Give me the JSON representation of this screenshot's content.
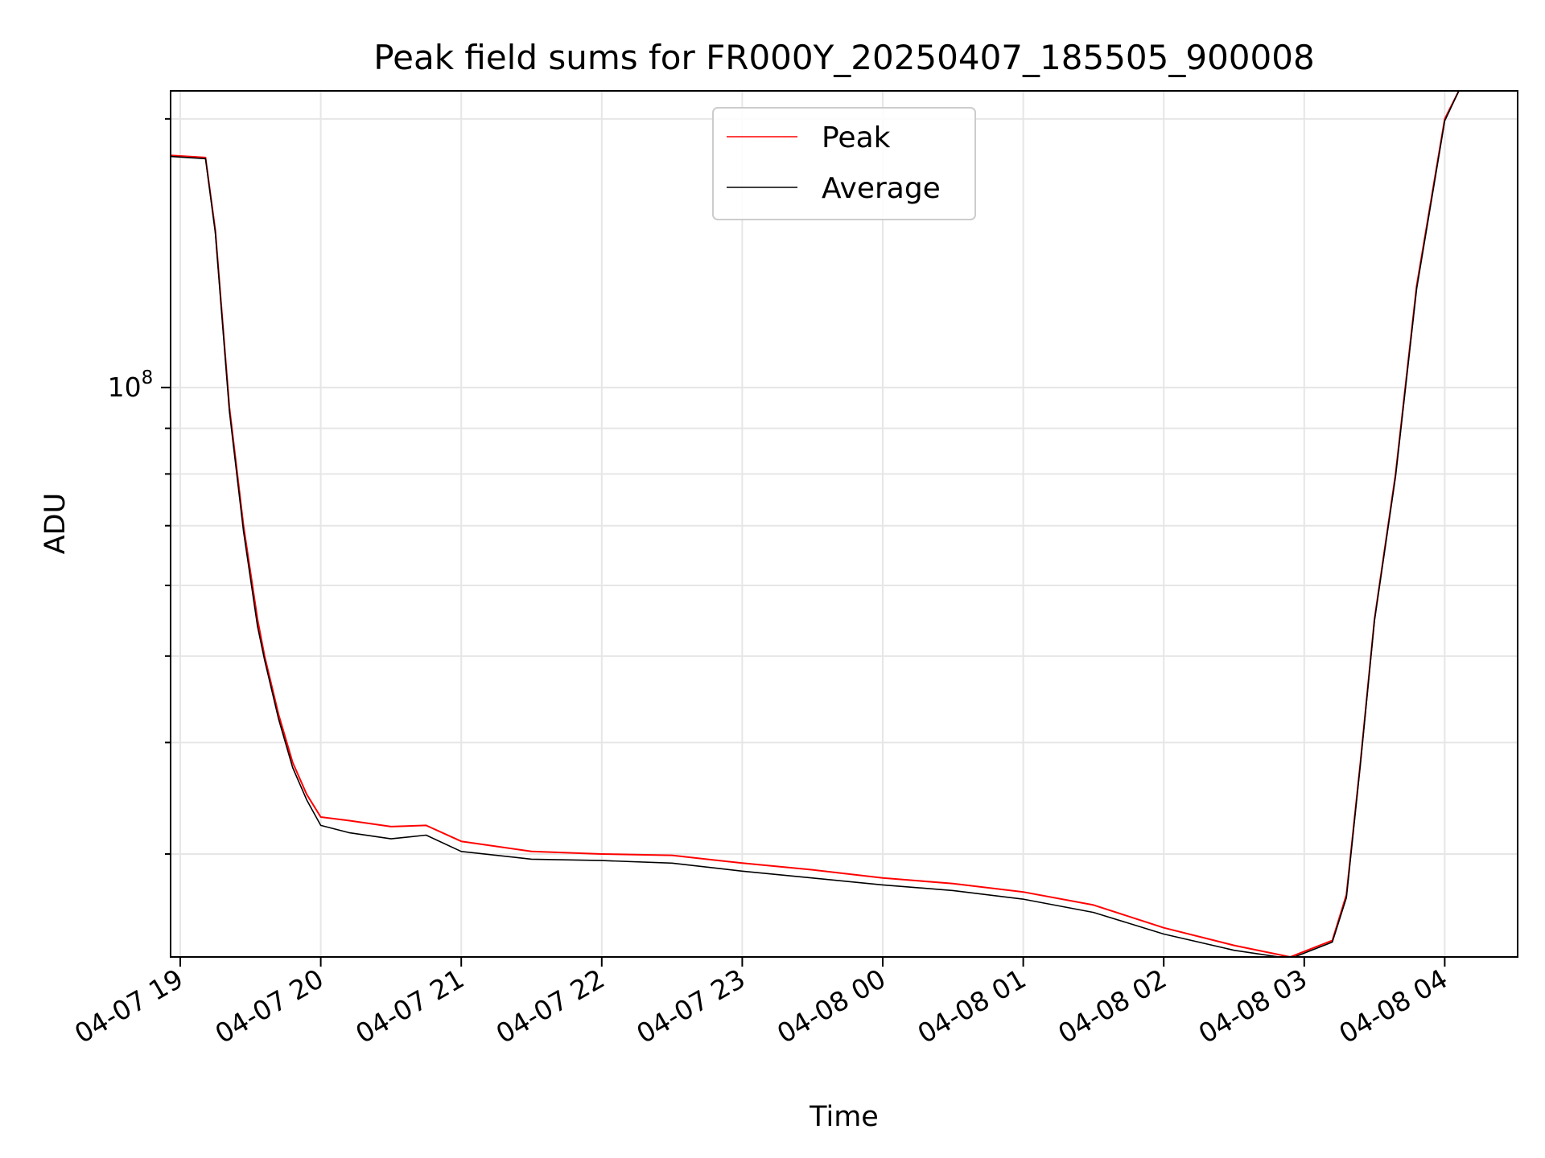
{
  "chart_data": {
    "type": "line",
    "title": "Peak field sums for FR000Y_20250407_185505_900008",
    "xlabel": "Time",
    "ylabel": "ADU",
    "x_ticks": [
      "04-07 19",
      "04-07 20",
      "04-07 21",
      "04-07 22",
      "04-07 23",
      "04-08 00",
      "04-08 01",
      "04-08 02",
      "04-08 03",
      "04-08 04"
    ],
    "y_tick_major": {
      "base": "10",
      "exponent": "8",
      "value": 100000000
    },
    "ylim": [
      23000000,
      215000000
    ],
    "log_y": true,
    "grid": true,
    "legend_position": "top-center",
    "x_hours": [
      -0.07,
      0.18,
      0.25,
      0.35,
      0.45,
      0.55,
      0.6,
      0.7,
      0.8,
      0.9,
      1.0,
      1.2,
      1.5,
      1.75,
      2.0,
      2.5,
      3.0,
      3.5,
      4.0,
      4.5,
      5.0,
      5.5,
      6.0,
      6.5,
      7.0,
      7.5,
      7.9,
      8.2,
      8.3,
      8.4,
      8.5,
      8.65,
      8.8,
      9.0,
      9.1,
      9.2
    ],
    "series": [
      {
        "name": "Peak",
        "color": "#ff0000",
        "values": [
          182000000,
          181000000,
          150000000,
          95000000,
          70000000,
          55000000,
          50000000,
          43000000,
          38000000,
          35000000,
          33000000,
          32700000,
          32200000,
          32300000,
          31000000,
          30200000,
          30000000,
          29900000,
          29300000,
          28800000,
          28200000,
          27800000,
          27200000,
          26300000,
          24800000,
          23700000,
          23000000,
          24000000,
          27000000,
          38000000,
          55000000,
          80000000,
          130000000,
          200000000,
          215000000,
          215000000
        ]
      },
      {
        "name": "Average",
        "color": "#000000",
        "values": [
          181500000,
          180500000,
          149000000,
          94000000,
          69000000,
          54000000,
          49500000,
          42500000,
          37500000,
          34500000,
          32300000,
          31700000,
          31200000,
          31500000,
          30200000,
          29600000,
          29500000,
          29300000,
          28700000,
          28200000,
          27700000,
          27300000,
          26700000,
          25800000,
          24400000,
          23400000,
          22900000,
          23900000,
          26800000,
          37800000,
          54800000,
          79500000,
          129000000,
          199000000,
          215000000,
          215000000
        ]
      }
    ]
  }
}
